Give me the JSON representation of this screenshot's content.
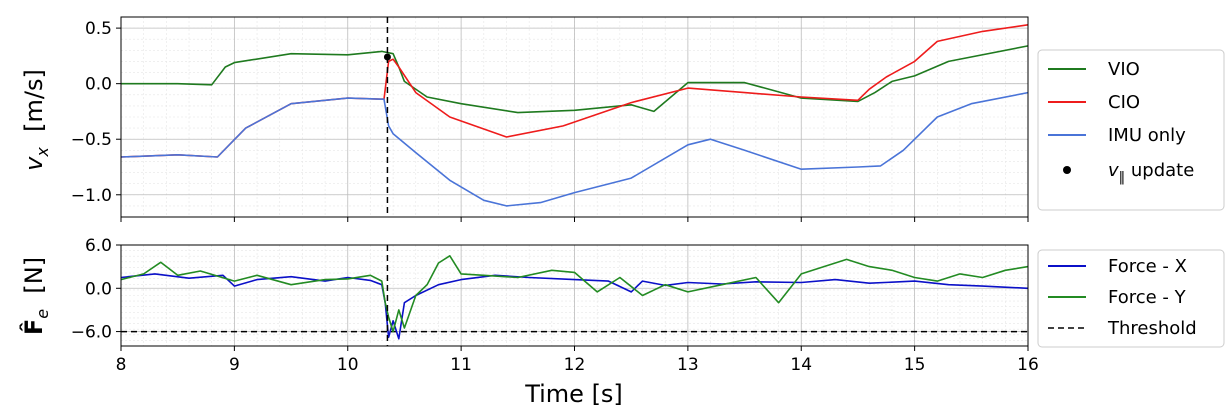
{
  "colors": {
    "vio": "#1f7a1f",
    "cio": "#ee1c1c",
    "imu": "#4a74d8",
    "force_x": "#0b10c8",
    "force_y": "#238b23",
    "black": "#000000"
  },
  "chart_data": [
    {
      "type": "line",
      "id": "velocity",
      "ylabel": "v_x  [m/s]",
      "xlim": [
        8,
        16
      ],
      "ylim": [
        -1.2,
        0.6
      ],
      "yticks": [
        0.5,
        0.0,
        -0.5,
        -1.0
      ],
      "ytick_labels": [
        "0.5",
        "0.0",
        "−0.5",
        "−1.0"
      ],
      "grid": true,
      "legend_position": "outside-right",
      "vline_x": 10.35,
      "series": [
        {
          "name": "VIO",
          "color_key": "vio",
          "x": [
            8.0,
            8.5,
            8.8,
            8.92,
            9.0,
            9.5,
            10.0,
            10.3,
            10.4,
            10.45,
            10.5,
            10.7,
            11.0,
            11.5,
            12.0,
            12.5,
            12.7,
            13.0,
            13.5,
            14.0,
            14.5,
            14.65,
            14.8,
            15.0,
            15.3,
            16.0
          ],
          "y": [
            0.0,
            0.0,
            -0.01,
            0.15,
            0.19,
            0.27,
            0.26,
            0.29,
            0.27,
            0.15,
            0.02,
            -0.12,
            -0.18,
            -0.26,
            -0.24,
            -0.19,
            -0.25,
            0.01,
            0.01,
            -0.13,
            -0.16,
            -0.08,
            0.02,
            0.07,
            0.2,
            0.34
          ]
        },
        {
          "name": "CIO",
          "color_key": "cio",
          "x": [
            8.0,
            8.5,
            8.85,
            9.1,
            9.5,
            10.0,
            10.32,
            10.36,
            10.4,
            10.45,
            10.6,
            10.9,
            11.4,
            11.9,
            12.5,
            13.0,
            13.5,
            14.0,
            14.5,
            14.6,
            14.75,
            15.0,
            15.2,
            15.6,
            16.0
          ],
          "y": [
            -0.66,
            -0.64,
            -0.66,
            -0.4,
            -0.18,
            -0.13,
            -0.14,
            0.2,
            0.22,
            0.15,
            -0.08,
            -0.3,
            -0.48,
            -0.38,
            -0.17,
            -0.04,
            -0.08,
            -0.12,
            -0.15,
            -0.05,
            0.06,
            0.2,
            0.38,
            0.47,
            0.53
          ]
        },
        {
          "name": "IMU only",
          "color_key": "imu",
          "x": [
            8.0,
            8.5,
            8.85,
            9.1,
            9.5,
            10.0,
            10.32,
            10.36,
            10.4,
            10.6,
            10.9,
            11.2,
            11.4,
            11.7,
            12.0,
            12.5,
            13.0,
            13.2,
            13.5,
            14.0,
            14.5,
            14.7,
            14.9,
            15.2,
            15.5,
            16.0
          ],
          "y": [
            -0.66,
            -0.64,
            -0.66,
            -0.4,
            -0.18,
            -0.13,
            -0.14,
            -0.38,
            -0.45,
            -0.62,
            -0.87,
            -1.05,
            -1.1,
            -1.07,
            -0.98,
            -0.85,
            -0.55,
            -0.5,
            -0.6,
            -0.77,
            -0.75,
            -0.74,
            -0.6,
            -0.3,
            -0.18,
            -0.08
          ]
        },
        {
          "name": "v_‖ update",
          "color_key": "black",
          "marker": "dot",
          "x": [
            10.35
          ],
          "y": [
            0.24
          ]
        }
      ]
    },
    {
      "type": "line",
      "id": "force",
      "ylabel": "F_e  [N]",
      "xlabel": "Time [s]",
      "xlim": [
        8,
        16
      ],
      "ylim": [
        -8,
        6
      ],
      "xticks": [
        8,
        9,
        10,
        11,
        12,
        13,
        14,
        15,
        16
      ],
      "xtick_labels": [
        "8",
        "9",
        "10",
        "11",
        "12",
        "13",
        "14",
        "15",
        "16"
      ],
      "yticks": [
        6,
        0,
        -6
      ],
      "ytick_labels": [
        "6.0",
        "0.0",
        "−6.0"
      ],
      "grid": true,
      "legend_position": "outside-right",
      "vline_x": 10.35,
      "threshold": -6.0,
      "series": [
        {
          "name": "Force - X",
          "color_key": "force_x",
          "x": [
            8.0,
            8.3,
            8.6,
            8.9,
            9.0,
            9.2,
            9.5,
            9.8,
            10.0,
            10.2,
            10.3,
            10.33,
            10.36,
            10.4,
            10.45,
            10.5,
            10.6,
            10.8,
            11.0,
            11.3,
            11.6,
            12.0,
            12.3,
            12.5,
            12.6,
            12.8,
            13.0,
            13.3,
            13.6,
            14.0,
            14.3,
            14.6,
            15.0,
            15.3,
            15.6,
            16.0
          ],
          "y": [
            1.5,
            2.0,
            1.4,
            1.8,
            0.3,
            1.2,
            1.6,
            1.0,
            1.5,
            1.1,
            0.5,
            -2.0,
            -6.8,
            -4.5,
            -7.0,
            -2.0,
            -1.0,
            0.5,
            1.2,
            1.8,
            1.5,
            1.2,
            1.0,
            -0.5,
            1.0,
            0.4,
            0.8,
            0.6,
            0.9,
            0.8,
            1.2,
            0.7,
            1.0,
            0.5,
            0.3,
            0.0
          ]
        },
        {
          "name": "Force - Y",
          "color_key": "force_y",
          "x": [
            8.0,
            8.2,
            8.35,
            8.5,
            8.7,
            9.0,
            9.2,
            9.5,
            9.8,
            10.0,
            10.2,
            10.3,
            10.33,
            10.36,
            10.4,
            10.45,
            10.5,
            10.6,
            10.7,
            10.8,
            10.9,
            11.0,
            11.2,
            11.5,
            11.8,
            12.0,
            12.2,
            12.4,
            12.6,
            12.8,
            13.0,
            13.3,
            13.6,
            13.8,
            14.0,
            14.2,
            14.4,
            14.6,
            14.8,
            15.0,
            15.2,
            15.4,
            15.6,
            15.8,
            16.0
          ],
          "y": [
            1.2,
            2.0,
            3.6,
            1.8,
            2.4,
            1.0,
            1.8,
            0.5,
            1.2,
            1.3,
            1.8,
            1.0,
            -2.0,
            -4.0,
            -6.0,
            -3.0,
            -5.5,
            -1.0,
            0.5,
            3.5,
            4.5,
            2.0,
            1.8,
            1.5,
            2.5,
            2.2,
            -0.5,
            1.5,
            -1.0,
            0.5,
            -0.5,
            0.5,
            1.5,
            -2.0,
            2.0,
            3.0,
            4.0,
            3.0,
            2.5,
            1.5,
            1.0,
            2.0,
            1.5,
            2.5,
            3.0
          ]
        }
      ]
    }
  ]
}
